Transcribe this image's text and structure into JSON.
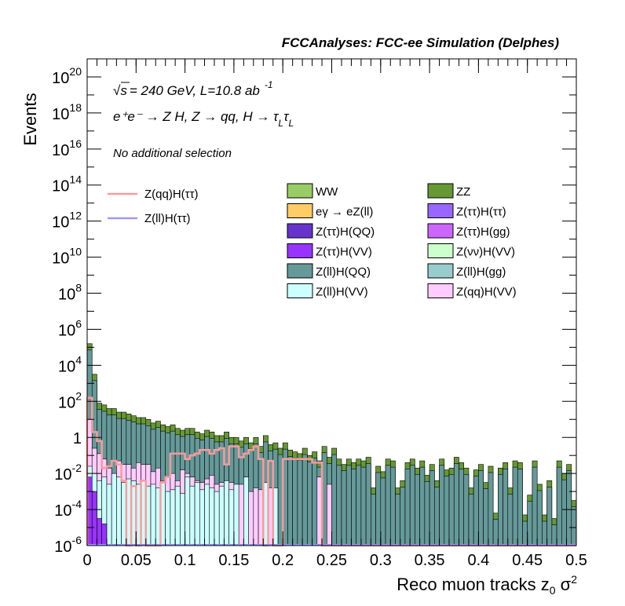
{
  "chart_data": {
    "type": "bar",
    "title": "FCCAnalyses: FCC-ee Simulation (Delphes)",
    "ylabel": "Events",
    "xlabel_main": "Reco muon tracks z",
    "xlabel_sub": "0",
    "xlabel_tail": " σ",
    "xlabel_sup": "2",
    "xlim": [
      0,
      0.5
    ],
    "ylim_exp": [
      -6,
      21
    ],
    "y_scale": "log",
    "x_ticks": [
      "0",
      "0.05",
      "0.1",
      "0.15",
      "0.2",
      "0.25",
      "0.3",
      "0.35",
      "0.4",
      "0.45",
      "0.5"
    ],
    "y_ticks": [
      {
        "base": "10",
        "exp": "20",
        "v": 20
      },
      {
        "base": "10",
        "exp": "18",
        "v": 18
      },
      {
        "base": "10",
        "exp": "16",
        "v": 16
      },
      {
        "base": "10",
        "exp": "14",
        "v": 14
      },
      {
        "base": "10",
        "exp": "12",
        "v": 12
      },
      {
        "base": "10",
        "exp": "10",
        "v": 10
      },
      {
        "base": "10",
        "exp": "8",
        "v": 8
      },
      {
        "base": "10",
        "exp": "6",
        "v": 6
      },
      {
        "base": "10",
        "exp": "4",
        "v": 4
      },
      {
        "base": "10",
        "exp": "2",
        "v": 2
      },
      {
        "base": "1",
        "exp": "",
        "v": 0
      },
      {
        "base": "10",
        "exp": "-2",
        "v": -2
      },
      {
        "base": "10",
        "exp": "-4",
        "v": -4
      },
      {
        "base": "10",
        "exp": "-6",
        "v": -6
      }
    ],
    "annotations": {
      "energy": "= 240 GeV, L=10.8 ab",
      "energy_prefix": "√s",
      "lumi_exp": "-1",
      "process": "e⁺e⁻ → Z H, Z → qq, H → τ",
      "process_sub1": "L",
      "process_mid": "τ",
      "process_sub2": "L",
      "selection": "No additional selection"
    },
    "legend_signal": [
      {
        "name": "Z(qq)H(ττ)",
        "color": "#ff9999"
      },
      {
        "name": "Z(ll)H(ττ)",
        "color": "#9999ff"
      }
    ],
    "legend_bkg": [
      {
        "name": "WW",
        "color": "#99cc66"
      },
      {
        "name": "ZZ",
        "color": "#669933"
      },
      {
        "name": "eγ → eZ(ll)",
        "color": "#ffcc66"
      },
      {
        "name": "Z(ττ)H(ττ)",
        "color": "#9966ff"
      },
      {
        "name": "Z(ττ)H(QQ)",
        "color": "#6633cc"
      },
      {
        "name": "Z(ττ)H(gg)",
        "color": "#cc66ff"
      },
      {
        "name": "Z(ττ)H(VV)",
        "color": "#9933ff"
      },
      {
        "name": "Z(νν)H(VV)",
        "color": "#ccffcc"
      },
      {
        "name": "Z(ll)H(QQ)",
        "color": "#669999"
      },
      {
        "name": "Z(ll)H(gg)",
        "color": "#99cccc"
      },
      {
        "name": "Z(ll)H(VV)",
        "color": "#ccffff"
      },
      {
        "name": "Z(qq)H(VV)",
        "color": "#ffccff"
      }
    ],
    "bin_width": 0.005,
    "stack_total_log10": [
      5.2,
      3.5,
      1.9,
      1.8,
      1.6,
      1.6,
      1.4,
      1.4,
      1.3,
      1.2,
      1.1,
      1.1,
      1.0,
      0.8,
      0.9,
      0.7,
      0.6,
      0.7,
      0.5,
      0.4,
      0.5,
      0.5,
      0.3,
      0.2,
      0.4,
      0.3,
      0.1,
      0.1,
      0.3,
      0.0,
      0.0,
      -0.2,
      0.0,
      -0.3,
      0.0,
      -0.5,
      0.1,
      -0.4,
      -0.3,
      -0.6,
      -0.3,
      -0.7,
      -0.8,
      -0.9,
      -0.6,
      -1.0,
      -0.8,
      -1.3,
      -0.5,
      -1.1,
      -0.6,
      -1.2,
      -1.5,
      -1.2,
      -1.4,
      -1.2,
      -1.3,
      -1.1,
      -2.8,
      -1.6,
      -1.9,
      -1.2,
      -1.3,
      -2.8,
      -2.4,
      -1.4,
      -1.2,
      -1.7,
      -1.3,
      -2.1,
      -1.5,
      -2.4,
      -1.2,
      -1.8,
      -1.7,
      -1.1,
      -1.4,
      -1.7,
      -2.8,
      -1.8,
      -1.5,
      -2.5,
      -1.6,
      -4.2,
      -1.7,
      -1.4,
      -2.8,
      -1.3,
      -1.4,
      -4.3,
      -3.2,
      -1.3,
      -2.6,
      -4.3,
      -2.4,
      -4.5,
      -1.3,
      -2.0,
      -1.5,
      -3.5
    ],
    "zqqhvv_log10": [
      1.0,
      -0.6,
      -0.9,
      -1.2,
      -1.7,
      -2.3,
      -1.3,
      -1.5,
      -1.5,
      -1.7,
      -1.4,
      -1.5,
      -1.5,
      -1.9,
      -1.7,
      -2.4,
      -2.2,
      -2.0,
      -2.4,
      -1.8,
      -2.0,
      -2.2,
      -2.4,
      -2.5,
      -2.3,
      -2.1,
      -2.6,
      -2.5,
      -2.7,
      -2.5,
      -2.8,
      -2.6,
      -2.7,
      -3.0,
      -2.8,
      -2.9,
      -3.1,
      -2.8,
      -2.9,
      -6.1,
      -6.1,
      -6.1,
      -6.1,
      -6.1,
      -6.1,
      -6.1,
      -6.1,
      -2.2,
      -6.1,
      -2.6,
      -6.1,
      -6.1,
      -6.1,
      -6.1,
      -6.1,
      -6.1,
      -6.1,
      -6.1,
      -6.1,
      -6.1,
      -6.1,
      -6.1,
      -6.1,
      -6.1,
      -6.1,
      -6.1,
      -6.1,
      -6.1,
      -6.1,
      -6.1,
      -6.1,
      -6.1,
      -6.1,
      -6.1,
      -6.1,
      -6.1,
      -6.1,
      -6.1,
      -6.1,
      -6.1,
      -6.1,
      -6.1,
      -6.1,
      -6.1,
      -6.1,
      -6.1,
      -6.1,
      -6.1,
      -6.1,
      -6.1,
      -6.1,
      -6.1,
      -6.1,
      -6.1,
      -6.1,
      -6.1,
      -6.1,
      -6.1,
      -6.1,
      -6.1
    ],
    "ztthvv_log10": [
      -2.2,
      -3.0,
      -4.5,
      -4.8,
      -6.1,
      -6.1,
      -6.1,
      -6.1,
      -6.1,
      -6.1,
      -6.1,
      -6.1,
      -6.1,
      -6.1,
      -6.1,
      -6.1,
      -6.1,
      -6.1,
      -6.1,
      -6.1,
      -6.1,
      -6.1,
      -6.1,
      -6.1,
      -6.1,
      -6.1,
      -6.1,
      -6.1,
      -6.1,
      -6.1,
      -6.1,
      -6.1,
      -6.1,
      -6.1,
      -6.1,
      -6.1,
      -6.1,
      -6.1,
      -6.1,
      -6.1,
      -6.1,
      -6.1,
      -6.1,
      -6.1,
      -6.1,
      -6.1,
      -6.1,
      -6.1,
      -6.1,
      -6.1,
      -6.1,
      -6.1,
      -6.1,
      -6.1,
      -6.1,
      -6.1,
      -6.1,
      -6.1,
      -6.1,
      -6.1,
      -6.1,
      -6.1,
      -6.1,
      -6.1,
      -6.1,
      -6.1,
      -6.1,
      -6.1,
      -6.1,
      -6.1,
      -6.1,
      -6.1,
      -6.1,
      -6.1,
      -6.1,
      -6.1,
      -6.1,
      -6.1,
      -6.1,
      -6.1,
      -6.1,
      -6.1,
      -6.1,
      -6.1,
      -6.1,
      -6.1,
      -6.1,
      -6.1,
      -6.1,
      -6.1,
      -6.1,
      -6.1,
      -6.1,
      -6.1,
      -6.1,
      -6.1,
      -6.1,
      -6.1,
      -6.1,
      -6.1
    ],
    "zllhvv_log10": [
      -1.6,
      -2.0,
      -2.4,
      -2.2,
      -2.6,
      -2.0,
      -2.2,
      -2.5,
      -2.3,
      -2.4,
      -2.6,
      -2.4,
      -2.7,
      -2.6,
      -2.8,
      -2.5,
      -3.0,
      -2.9,
      -2.7,
      -3.1,
      -2.2,
      -2.7,
      -2.5,
      -2.9,
      -2.6,
      -2.8,
      -3.0,
      -2.7,
      -2.4,
      -2.9,
      -2.6,
      -6.1,
      -2.2,
      -6.1,
      -6.1,
      -6.1,
      -2.5,
      -6.1,
      -2.8,
      -6.1,
      -6.1,
      -6.1,
      -6.1,
      -6.1,
      -6.1,
      -6.1,
      -6.1,
      -6.1,
      -6.1,
      -6.1,
      -6.1,
      -6.1,
      -6.1,
      -6.1,
      -6.1,
      -6.1,
      -6.1,
      -6.1,
      -6.1,
      -6.1,
      -6.1,
      -6.1,
      -6.1,
      -6.1,
      -6.1,
      -6.1,
      -6.1,
      -6.1,
      -6.1,
      -6.1,
      -6.1,
      -6.1,
      -6.1,
      -6.1,
      -6.1,
      -6.1,
      -6.1,
      -6.1,
      -6.1,
      -6.1,
      -6.1,
      -6.1,
      -6.1,
      -6.1,
      -6.1,
      -6.1,
      -6.1,
      -6.1,
      -6.1,
      -6.1,
      -6.1,
      -6.1,
      -6.1,
      -6.1,
      -6.1,
      -6.1,
      -6.1,
      -6.1,
      -6.1,
      -6.1
    ],
    "zqqhtt_log10": [
      2.2,
      0.3,
      -0.2,
      -1.7,
      -1.6,
      -1.3,
      -1.5,
      -2.4,
      -6.1,
      -2.7,
      -6.1,
      -2.4,
      -6.1,
      -6.1,
      -6.1,
      -2.5,
      -2.2,
      -0.9,
      -0.9,
      -0.9,
      -1.2,
      -1.0,
      -0.9,
      -0.7,
      -0.7,
      -0.9,
      -0.7,
      -0.6,
      -1.5,
      -0.5,
      -0.5,
      -1.1,
      -0.9,
      -0.7,
      -0.5,
      -1.2,
      -6.1,
      -1.3,
      -6.1,
      -6.1,
      -1.2,
      -1.2,
      -1.2,
      -1.2,
      -1.2,
      -1.2,
      -1.4,
      -1.4,
      -6.1,
      -6.1,
      -6.1,
      -6.1,
      -6.1,
      -6.1,
      -6.1,
      -6.1,
      -6.1,
      -6.1,
      -6.1,
      -6.1,
      -6.1,
      -6.1,
      -6.1,
      -6.1,
      -6.1,
      -6.1,
      -6.1,
      -6.1,
      -6.1,
      -6.1,
      -6.1,
      -6.1,
      -6.1,
      -6.1,
      -6.1,
      -6.1,
      -6.1,
      -6.1,
      -6.1,
      -6.1,
      -6.1,
      -6.1,
      -6.1,
      -6.1,
      -6.1,
      -6.1,
      -6.1,
      -6.1,
      -6.1,
      -6.1,
      -6.1,
      -6.1,
      -6.1,
      -6.1,
      -6.1,
      -6.1,
      -6.1,
      -6.1,
      -6.1,
      -6.1
    ]
  }
}
